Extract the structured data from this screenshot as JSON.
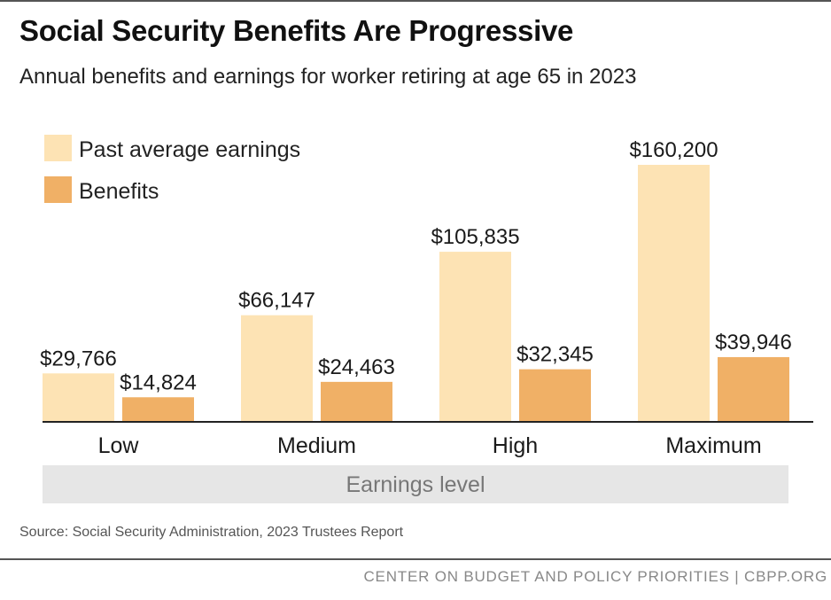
{
  "header": {
    "title": "Social Security Benefits Are Progressive",
    "subtitle": "Annual benefits and earnings for worker retiring at age 65 in 2023"
  },
  "chart_data": {
    "type": "bar",
    "title": "Social Security Benefits Are Progressive",
    "subtitle": "Annual benefits and earnings for worker retiring at age 65 in 2023",
    "xlabel": "Earnings level",
    "ylabel": "",
    "categories": [
      "Low",
      "Medium",
      "High",
      "Maximum"
    ],
    "series": [
      {
        "name": "Past average earnings",
        "color": "#FDE3B4",
        "values": [
          29766,
          66147,
          105835,
          160200
        ],
        "labels": [
          "$29,766",
          "$66,147",
          "$105,835",
          "$160,200"
        ]
      },
      {
        "name": "Benefits",
        "color": "#F0B066",
        "values": [
          14824,
          24463,
          32345,
          39946
        ],
        "labels": [
          "$14,824",
          "$24,463",
          "$32,345",
          "$39,946"
        ]
      }
    ],
    "ylim": [
      0,
      160200
    ],
    "grid": false,
    "legend": "top-left"
  },
  "footer": {
    "source": "Source: Social Security Administration, 2023 Trustees Report",
    "org": "CENTER ON BUDGET AND POLICY PRIORITIES | CBPP.ORG"
  }
}
